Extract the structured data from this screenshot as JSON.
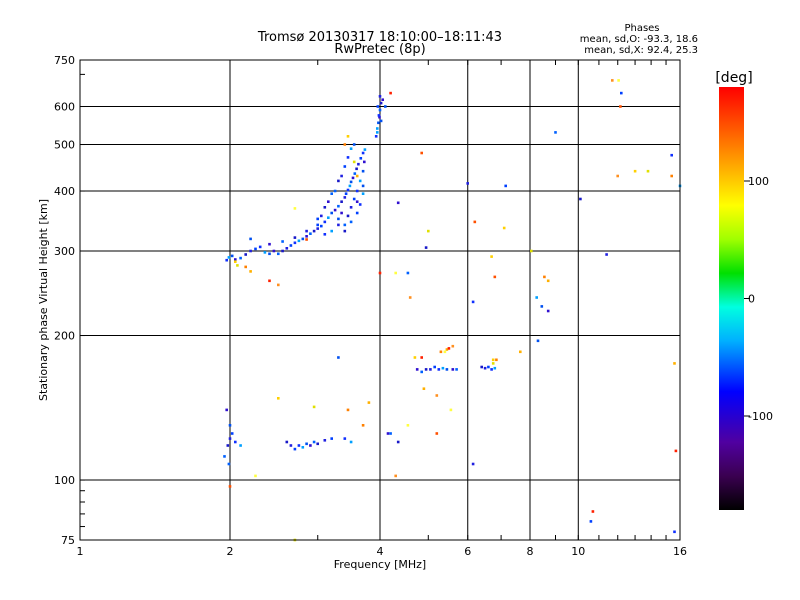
{
  "chart_data": {
    "type": "scatter",
    "title": "Tromsø 20130317 18:10:00–18:11:43",
    "subtitle": "RwPretec (8p)",
    "xlabel": "Frequency [MHz]",
    "ylabel": "Stationary phase Virtual Height [km]",
    "x_scale": "log",
    "y_scale": "log",
    "xlim": [
      1,
      16
    ],
    "ylim": [
      75,
      750
    ],
    "x_ticks": [
      1,
      2,
      4,
      6,
      8,
      10,
      16
    ],
    "y_ticks": [
      75,
      100,
      200,
      300,
      400,
      500,
      600,
      750
    ],
    "grid": true,
    "stats": {
      "heading": "Phases",
      "line_o": "mean, sd,O: -93.3, 18.6",
      "line_x": "mean, sd,X:  92.4, 25.3"
    },
    "colorbar": {
      "label": "[deg]",
      "range": [
        -180,
        180
      ],
      "ticks": [
        100,
        0,
        -100
      ],
      "colormap": "rainbow: black-purple-blue-cyan-green-yellow-orange-red"
    },
    "series": [
      {
        "points": [
          [
            1.97,
            287
          ],
          [
            1.99,
            291
          ],
          [
            2.02,
            293
          ],
          [
            2.05,
            288
          ],
          [
            2.1,
            290
          ],
          [
            2.15,
            295
          ],
          [
            2.2,
            300
          ],
          [
            2.25,
            303
          ],
          [
            2.3,
            306
          ],
          [
            2.35,
            298
          ],
          [
            2.4,
            296
          ],
          [
            2.45,
            300
          ],
          [
            2.5,
            296
          ],
          [
            2.55,
            300
          ],
          [
            2.6,
            304
          ],
          [
            2.65,
            308
          ],
          [
            2.7,
            312
          ],
          [
            2.75,
            315
          ],
          [
            2.8,
            318
          ],
          [
            2.85,
            322
          ],
          [
            2.9,
            326
          ],
          [
            2.95,
            330
          ],
          [
            3.0,
            334
          ],
          [
            3.05,
            338
          ],
          [
            3.1,
            345
          ],
          [
            3.15,
            352
          ],
          [
            3.2,
            360
          ],
          [
            3.25,
            365
          ],
          [
            3.3,
            372
          ],
          [
            3.35,
            380
          ],
          [
            3.4,
            388
          ],
          [
            3.42,
            395
          ],
          [
            3.45,
            402
          ],
          [
            3.48,
            410
          ],
          [
            3.5,
            418
          ],
          [
            3.53,
            426
          ],
          [
            3.56,
            435
          ],
          [
            3.59,
            445
          ],
          [
            3.62,
            455
          ],
          [
            3.66,
            468
          ],
          [
            3.7,
            480
          ],
          [
            3.73,
            488
          ],
          [
            2.2,
            318
          ],
          [
            2.4,
            310
          ],
          [
            2.55,
            314
          ],
          [
            2.7,
            320
          ],
          [
            2.85,
            330
          ],
          [
            3.0,
            340
          ],
          [
            3.1,
            325
          ],
          [
            3.2,
            330
          ],
          [
            3.3,
            350
          ],
          [
            3.35,
            360
          ],
          [
            3.4,
            340
          ],
          [
            3.45,
            355
          ],
          [
            3.5,
            370
          ],
          [
            3.55,
            385
          ],
          [
            3.6,
            400
          ],
          [
            3.65,
            420
          ],
          [
            3.7,
            440
          ],
          [
            3.72,
            460
          ],
          [
            3.25,
            400
          ],
          [
            3.3,
            420
          ],
          [
            3.35,
            430
          ],
          [
            3.4,
            450
          ],
          [
            3.45,
            470
          ],
          [
            3.5,
            490
          ],
          [
            3.55,
            500
          ],
          [
            3.15,
            380
          ],
          [
            3.2,
            395
          ],
          [
            3.1,
            370
          ],
          [
            3.05,
            355
          ],
          [
            3.6,
            360
          ],
          [
            3.65,
            375
          ],
          [
            3.7,
            395
          ],
          [
            3.7,
            410
          ],
          [
            3.6,
            380
          ],
          [
            3.5,
            345
          ],
          [
            3.4,
            330
          ],
          [
            3.3,
            340
          ],
          [
            3.0,
            350
          ],
          [
            3.93,
            520
          ],
          [
            3.95,
            540
          ],
          [
            3.97,
            555
          ],
          [
            3.99,
            570
          ],
          [
            4.0,
            590
          ],
          [
            4.02,
            610
          ],
          [
            4.0,
            630
          ],
          [
            3.96,
            600
          ],
          [
            3.98,
            575
          ],
          [
            3.95,
            530
          ],
          [
            4.02,
            560
          ],
          [
            4.05,
            620
          ],
          [
            1.95,
            112
          ],
          [
            1.98,
            118
          ],
          [
            2.0,
            122
          ],
          [
            2.02,
            125
          ],
          [
            2.05,
            120
          ],
          [
            2.1,
            118
          ],
          [
            2.0,
            130
          ],
          [
            1.97,
            140
          ],
          [
            1.99,
            108
          ],
          [
            2.6,
            120
          ],
          [
            2.65,
            118
          ],
          [
            2.7,
            116
          ],
          [
            2.75,
            118
          ],
          [
            2.8,
            117
          ],
          [
            2.85,
            119
          ],
          [
            2.9,
            118
          ],
          [
            2.95,
            120
          ],
          [
            3.0,
            119
          ],
          [
            3.1,
            121
          ],
          [
            3.2,
            122
          ],
          [
            3.4,
            122
          ],
          [
            3.5,
            120
          ],
          [
            3.3,
            180
          ],
          [
            4.75,
            170
          ],
          [
            4.85,
            168
          ],
          [
            4.95,
            170
          ],
          [
            5.05,
            170
          ],
          [
            5.15,
            172
          ],
          [
            5.25,
            170
          ],
          [
            5.35,
            171
          ],
          [
            5.45,
            170
          ],
          [
            5.6,
            170
          ],
          [
            5.7,
            170
          ],
          [
            6.4,
            172
          ],
          [
            6.5,
            171
          ],
          [
            6.6,
            172
          ],
          [
            6.7,
            170
          ],
          [
            6.8,
            171
          ],
          [
            4.1,
            600
          ],
          [
            4.35,
            378
          ],
          [
            4.55,
            270
          ],
          [
            4.95,
            305
          ],
          [
            6.0,
            415
          ],
          [
            7.15,
            410
          ],
          [
            6.15,
            235
          ],
          [
            8.25,
            240
          ],
          [
            8.45,
            230
          ],
          [
            8.7,
            225
          ],
          [
            9.0,
            530
          ],
          [
            10.1,
            385
          ],
          [
            11.4,
            295
          ],
          [
            12.2,
            640
          ],
          [
            15.4,
            475
          ],
          [
            16.0,
            410
          ],
          [
            8.3,
            195
          ],
          [
            4.15,
            125
          ],
          [
            4.2,
            125
          ],
          [
            4.35,
            120
          ],
          [
            6.15,
            108
          ],
          [
            10.6,
            82
          ],
          [
            15.6,
            78
          ]
        ]
      },
      {
        "points": [
          [
            2.05,
            285
          ],
          [
            2.07,
            280
          ],
          [
            2.15,
            278
          ],
          [
            2.2,
            272
          ],
          [
            2.4,
            260
          ],
          [
            2.5,
            255
          ],
          [
            2.7,
            368
          ],
          [
            2.85,
            317
          ],
          [
            3.45,
            520
          ],
          [
            3.55,
            460
          ],
          [
            3.4,
            500
          ],
          [
            3.6,
            430
          ],
          [
            4.2,
            640
          ],
          [
            4.6,
            240
          ],
          [
            4.3,
            270
          ],
          [
            4.85,
            480
          ],
          [
            4.7,
            180
          ],
          [
            5.0,
            330
          ],
          [
            5.3,
            185
          ],
          [
            5.45,
            187
          ],
          [
            5.5,
            188
          ],
          [
            5.6,
            190
          ],
          [
            5.4,
            185
          ],
          [
            6.2,
            345
          ],
          [
            6.7,
            292
          ],
          [
            6.75,
            175
          ],
          [
            6.85,
            178
          ],
          [
            4.9,
            155
          ],
          [
            4.0,
            270
          ],
          [
            4.3,
            102
          ],
          [
            2.25,
            102
          ],
          [
            2.0,
            97
          ],
          [
            2.5,
            148
          ],
          [
            2.95,
            142
          ],
          [
            3.45,
            140
          ],
          [
            3.8,
            145
          ],
          [
            4.85,
            180
          ],
          [
            5.2,
            150
          ],
          [
            5.55,
            140
          ],
          [
            6.8,
            265
          ],
          [
            7.1,
            335
          ],
          [
            8.05,
            300
          ],
          [
            8.55,
            265
          ],
          [
            8.7,
            260
          ],
          [
            10.7,
            86
          ],
          [
            11.7,
            680
          ],
          [
            12.05,
            680
          ],
          [
            12.15,
            600
          ],
          [
            13.0,
            440
          ],
          [
            13.8,
            440
          ],
          [
            15.4,
            430
          ],
          [
            15.6,
            175
          ],
          [
            15.7,
            115
          ],
          [
            12.0,
            430
          ],
          [
            4.55,
            130
          ],
          [
            5.2,
            125
          ],
          [
            6.75,
            178
          ],
          [
            2.7,
            75
          ],
          [
            3.7,
            130
          ],
          [
            7.65,
            185
          ]
        ]
      }
    ]
  }
}
